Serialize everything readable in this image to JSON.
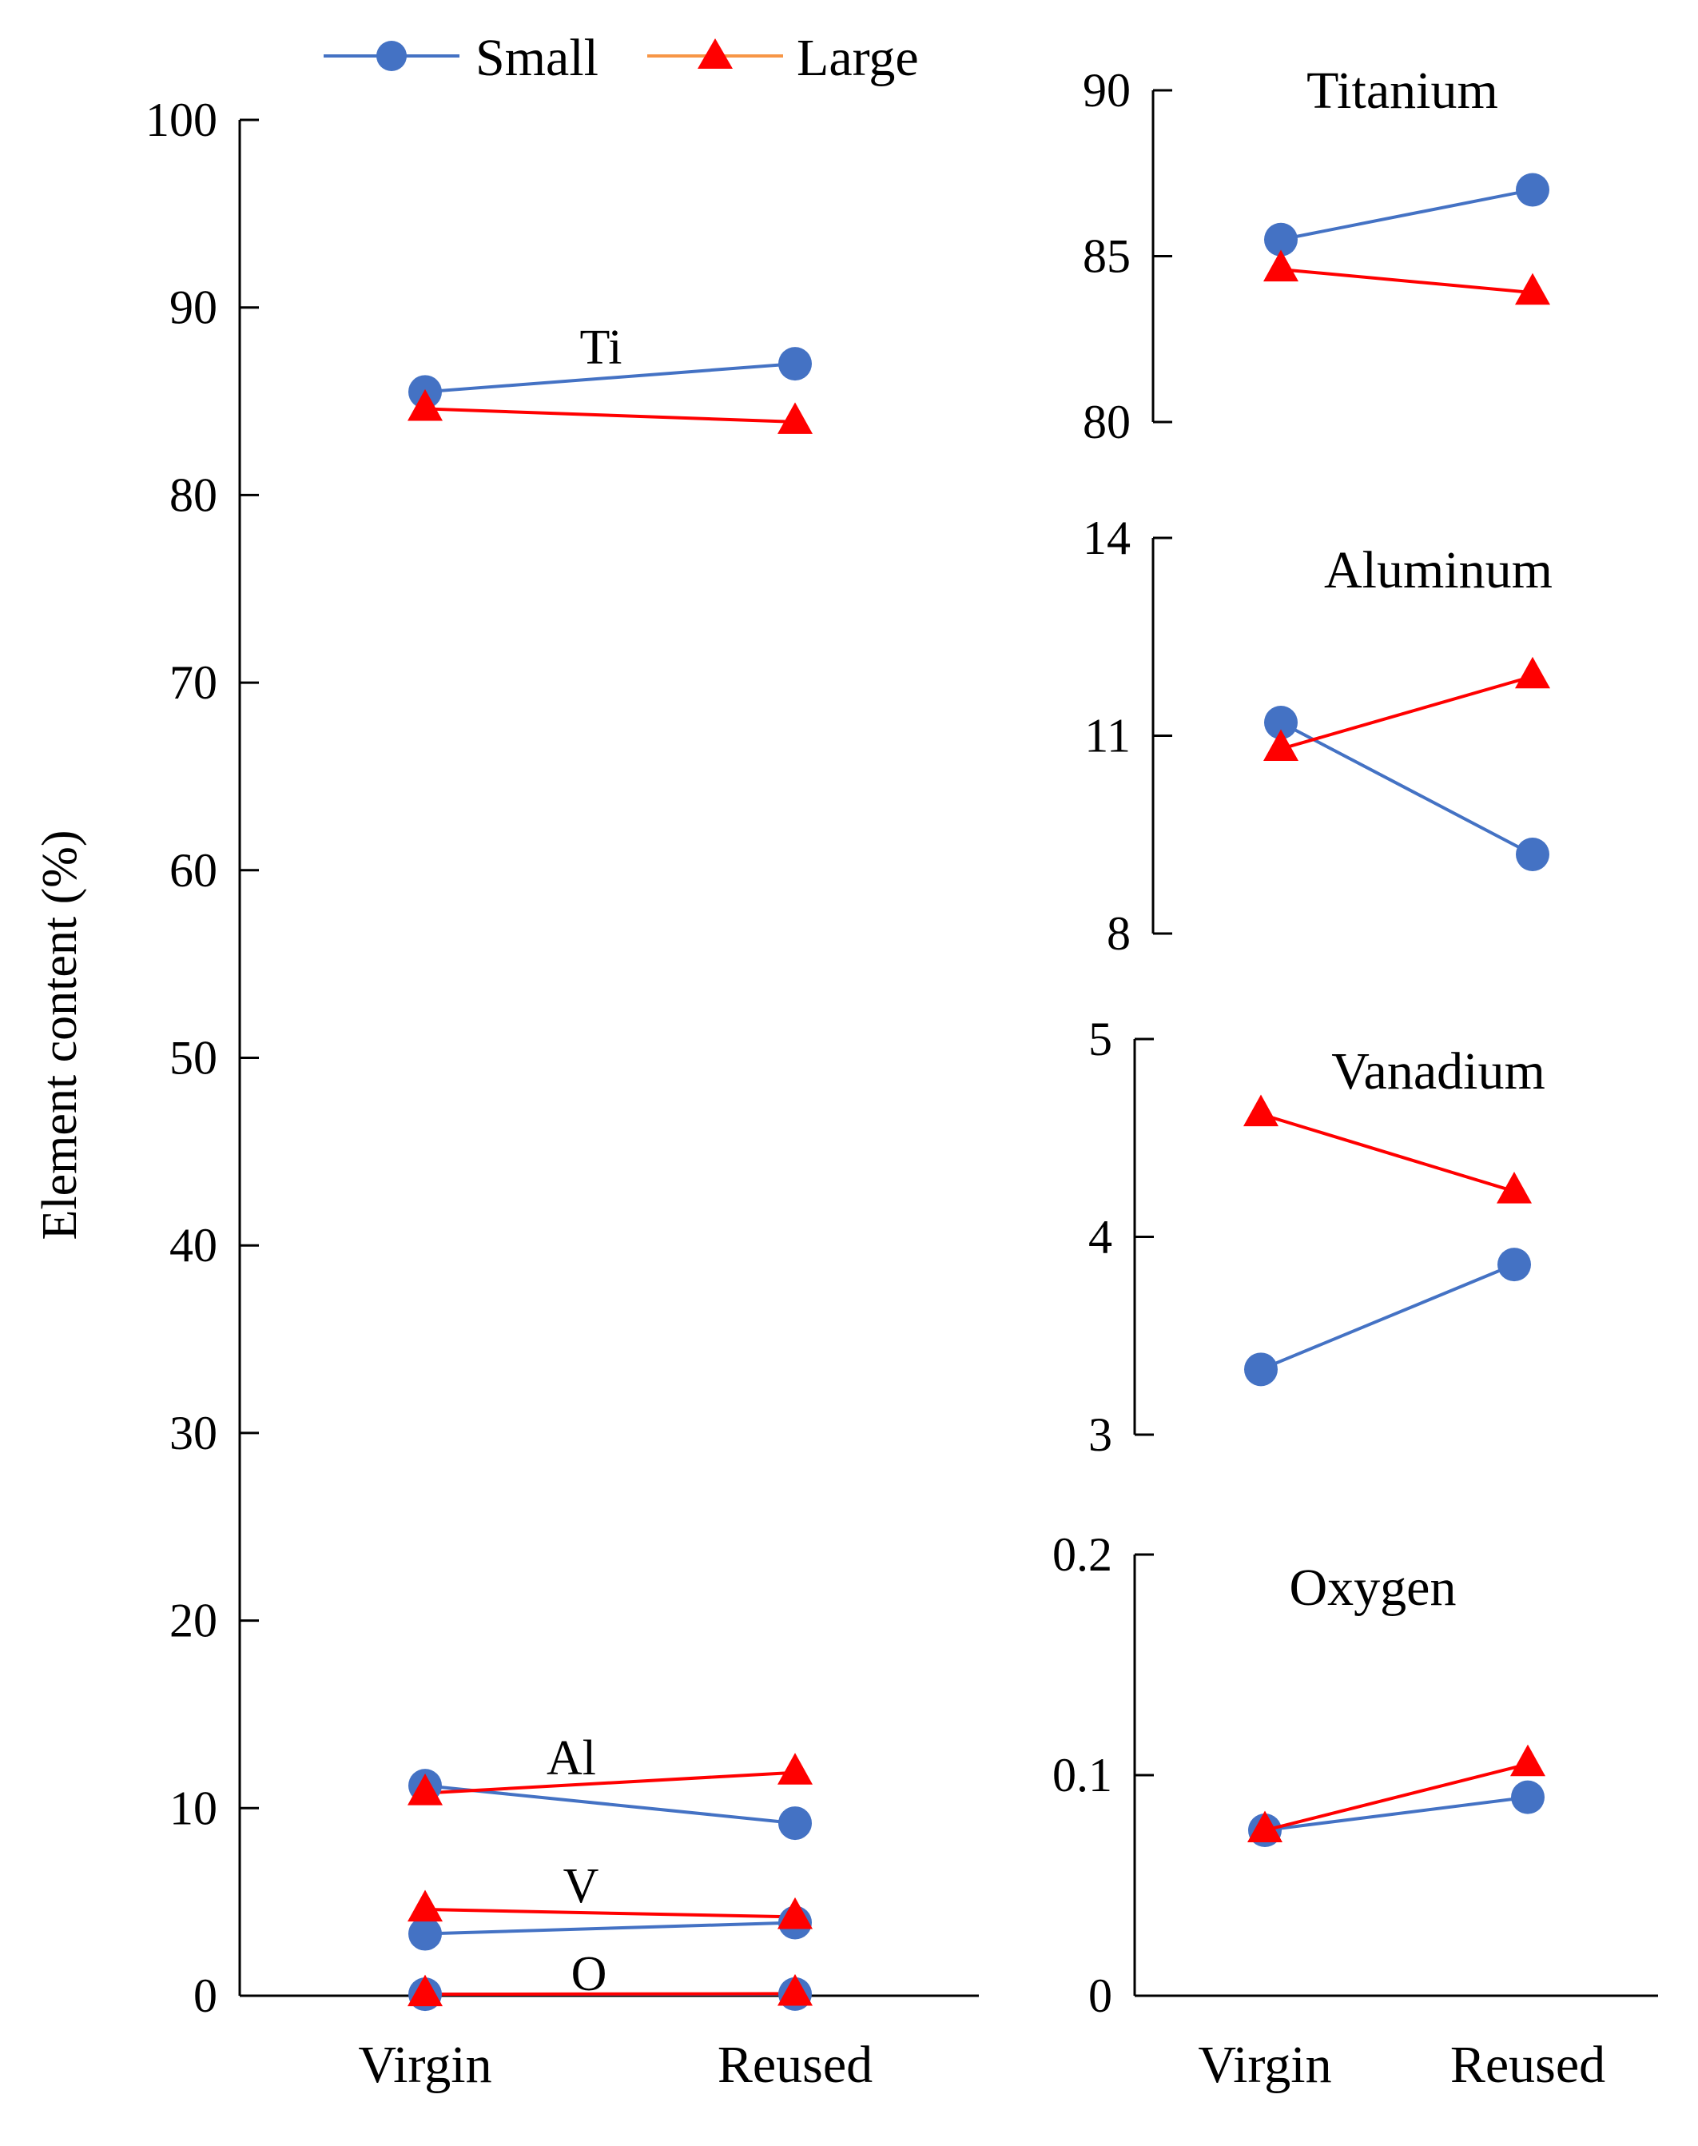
{
  "legend": {
    "items": [
      {
        "label": "Small",
        "color": "#4472C4",
        "marker": "circle",
        "key": "small"
      },
      {
        "label": "Large",
        "color": "#FF0000",
        "marker": "triangle",
        "key": "large"
      }
    ]
  },
  "chart_data": [
    {
      "id": "main",
      "type": "line",
      "title": "",
      "categories": [
        "Virgin",
        "Reused"
      ],
      "ylabel": "Element content (%)",
      "ylim": [
        0,
        100
      ],
      "yticks": [
        0,
        10,
        20,
        30,
        40,
        50,
        60,
        70,
        80,
        90,
        100
      ],
      "groups": [
        {
          "label": "Ti",
          "small": [
            85.5,
            87.0
          ],
          "large": [
            84.6,
            83.9
          ]
        },
        {
          "label": "Al",
          "small": [
            11.2,
            9.2
          ],
          "large": [
            10.8,
            11.9
          ]
        },
        {
          "label": "V",
          "small": [
            3.3,
            3.9
          ],
          "large": [
            4.6,
            4.2
          ]
        },
        {
          "label": "O",
          "small": [
            0.08,
            0.09
          ],
          "large": [
            0.08,
            0.11
          ]
        }
      ]
    },
    {
      "id": "titanium",
      "type": "line",
      "title": "Titanium",
      "categories": [
        "Virgin",
        "Reused"
      ],
      "ylim": [
        80,
        90
      ],
      "yticks": [
        80,
        85,
        90
      ],
      "series": [
        {
          "name": "Small",
          "values": [
            85.5,
            87.0
          ]
        },
        {
          "name": "Large",
          "values": [
            84.6,
            83.9
          ]
        }
      ]
    },
    {
      "id": "aluminum",
      "type": "line",
      "title": "Aluminum",
      "categories": [
        "Virgin",
        "Reused"
      ],
      "ylim": [
        8,
        14
      ],
      "yticks": [
        8,
        11,
        14
      ],
      "series": [
        {
          "name": "Small",
          "values": [
            11.2,
            9.2
          ]
        },
        {
          "name": "Large",
          "values": [
            10.8,
            11.9
          ]
        }
      ]
    },
    {
      "id": "vanadium",
      "type": "line",
      "title": "Vanadium",
      "categories": [
        "Virgin",
        "Reused"
      ],
      "ylim": [
        3,
        5
      ],
      "yticks": [
        3,
        4,
        5
      ],
      "series": [
        {
          "name": "Small",
          "values": [
            3.33,
            3.86
          ]
        },
        {
          "name": "Large",
          "values": [
            4.62,
            4.23
          ]
        }
      ]
    },
    {
      "id": "oxygen",
      "type": "line",
      "title": "Oxygen",
      "categories": [
        "Virgin",
        "Reused"
      ],
      "ylim": [
        0,
        0.2
      ],
      "yticks": [
        "0",
        "0.1",
        "0.2"
      ],
      "series": [
        {
          "name": "Small",
          "values": [
            0.075,
            0.09
          ]
        },
        {
          "name": "Large",
          "values": [
            0.075,
            0.105
          ]
        }
      ]
    }
  ]
}
